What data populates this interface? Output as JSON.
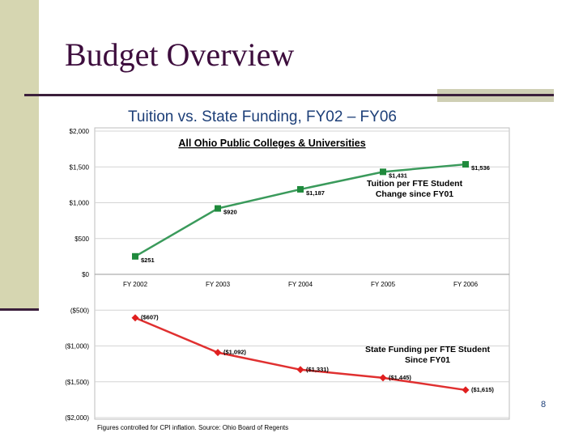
{
  "slide": {
    "title": "Budget Overview",
    "subtitle": "Tuition vs. State Funding, FY02 – FY06",
    "page_number": "8"
  },
  "chart_data": {
    "type": "line",
    "title": "All Ohio Public Colleges & Universities",
    "categories": [
      "FY 2002",
      "FY 2003",
      "FY 2004",
      "FY 2005",
      "FY 2006"
    ],
    "y_ticks": [
      "$2,000",
      "$1,500",
      "$1,000",
      "$500",
      "$0",
      "($500)",
      "($1,000)",
      "($1,500)",
      "($2,000)"
    ],
    "ylim": [
      -2000,
      2000
    ],
    "grid": true,
    "series": [
      {
        "name": "Tuition per FTE Student Change since FY01",
        "name_lines": [
          "Tuition per FTE Student",
          "Change since FY01"
        ],
        "color": "#3a9a5b",
        "marker": "square",
        "values": [
          251,
          920,
          1187,
          1431,
          1536
        ],
        "labels": [
          "$251",
          "$920",
          "$1,187",
          "$1,431",
          "$1,536"
        ]
      },
      {
        "name": "State Funding per FTE Student Since FY01",
        "name_lines": [
          "State Funding per FTE Student",
          "Since FY01"
        ],
        "color": "#e03030",
        "marker": "diamond",
        "values": [
          -607,
          -1092,
          -1331,
          -1445,
          -1615
        ],
        "labels": [
          "($607)",
          "($1,092)",
          "($1,331)",
          "($1,445)",
          "($1,615)"
        ]
      }
    ],
    "footnote": "Figures controlled for CPI inflation. Source: Ohio Board of Regents"
  }
}
